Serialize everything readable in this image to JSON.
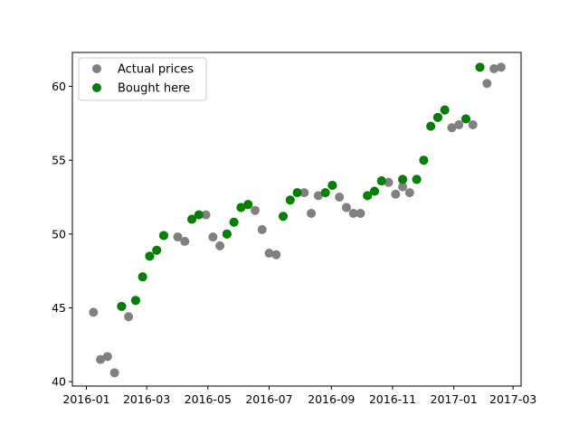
{
  "colors": {
    "actual": "#808080",
    "bought": "#008000",
    "axis": "#000000",
    "legend_border": "#cccccc"
  },
  "chart_data": {
    "type": "scatter",
    "title": "",
    "xlabel": "",
    "ylabel": "",
    "x_is_date": true,
    "xlim": [
      "2015-12-18",
      "2017-03-09"
    ],
    "ylim": [
      39.7,
      62.3
    ],
    "xticks": [
      "2016-01-01",
      "2016-03-01",
      "2016-05-01",
      "2016-07-01",
      "2016-09-01",
      "2016-11-01",
      "2017-01-01",
      "2017-03-01"
    ],
    "xtick_labels": [
      "2016-01",
      "2016-03",
      "2016-05",
      "2016-07",
      "2016-09",
      "2016-11",
      "2017-01",
      "2017-03"
    ],
    "yticks": [
      40,
      45,
      50,
      55,
      60
    ],
    "ytick_labels": [
      "40",
      "45",
      "50",
      "55",
      "60"
    ],
    "legend": {
      "placement": "upper-left"
    },
    "series": [
      {
        "name": "Actual prices",
        "color": "#808080",
        "points": [
          [
            "2016-01-08",
            44.7
          ],
          [
            "2016-01-15",
            41.5
          ],
          [
            "2016-01-22",
            41.7
          ],
          [
            "2016-01-29",
            40.6
          ],
          [
            "2016-02-05",
            45.1
          ],
          [
            "2016-02-12",
            44.4
          ],
          [
            "2016-02-19",
            45.5
          ],
          [
            "2016-02-26",
            47.1
          ],
          [
            "2016-03-04",
            48.5
          ],
          [
            "2016-03-11",
            48.9
          ],
          [
            "2016-03-18",
            49.9
          ],
          [
            "2016-04-01",
            49.8
          ],
          [
            "2016-04-08",
            49.5
          ],
          [
            "2016-04-15",
            51.0
          ],
          [
            "2016-04-22",
            51.3
          ],
          [
            "2016-04-29",
            51.3
          ],
          [
            "2016-05-06",
            49.8
          ],
          [
            "2016-05-13",
            49.2
          ],
          [
            "2016-05-20",
            50.0
          ],
          [
            "2016-05-27",
            50.8
          ],
          [
            "2016-06-03",
            51.8
          ],
          [
            "2016-06-10",
            52.0
          ],
          [
            "2016-06-17",
            51.6
          ],
          [
            "2016-06-24",
            50.3
          ],
          [
            "2016-07-01",
            48.7
          ],
          [
            "2016-07-08",
            48.6
          ],
          [
            "2016-07-15",
            51.2
          ],
          [
            "2016-07-22",
            52.3
          ],
          [
            "2016-07-29",
            52.8
          ],
          [
            "2016-08-05",
            52.8
          ],
          [
            "2016-08-12",
            51.4
          ],
          [
            "2016-08-19",
            52.6
          ],
          [
            "2016-08-26",
            52.8
          ],
          [
            "2016-09-02",
            53.3
          ],
          [
            "2016-09-09",
            52.5
          ],
          [
            "2016-09-16",
            51.8
          ],
          [
            "2016-09-23",
            51.4
          ],
          [
            "2016-09-30",
            51.4
          ],
          [
            "2016-10-07",
            52.6
          ],
          [
            "2016-10-14",
            52.9
          ],
          [
            "2016-10-21",
            53.6
          ],
          [
            "2016-10-28",
            53.5
          ],
          [
            "2016-11-04",
            52.7
          ],
          [
            "2016-11-11",
            53.7
          ],
          [
            "2016-11-11",
            53.2
          ],
          [
            "2016-11-18",
            52.8
          ],
          [
            "2016-11-25",
            53.7
          ],
          [
            "2016-12-02",
            55.0
          ],
          [
            "2016-12-09",
            57.3
          ],
          [
            "2016-12-16",
            57.9
          ],
          [
            "2016-12-23",
            58.4
          ],
          [
            "2016-12-30",
            57.2
          ],
          [
            "2017-01-06",
            57.4
          ],
          [
            "2017-01-13",
            57.8
          ],
          [
            "2017-01-20",
            57.4
          ],
          [
            "2017-01-27",
            61.3
          ],
          [
            "2017-02-03",
            60.2
          ],
          [
            "2017-02-10",
            61.2
          ],
          [
            "2017-02-17",
            61.3
          ]
        ]
      },
      {
        "name": "Bought here",
        "color": "#008000",
        "points": [
          [
            "2016-02-05",
            45.1
          ],
          [
            "2016-02-19",
            45.5
          ],
          [
            "2016-02-26",
            47.1
          ],
          [
            "2016-03-04",
            48.5
          ],
          [
            "2016-03-11",
            48.9
          ],
          [
            "2016-03-18",
            49.9
          ],
          [
            "2016-04-15",
            51.0
          ],
          [
            "2016-04-22",
            51.3
          ],
          [
            "2016-05-20",
            50.0
          ],
          [
            "2016-05-27",
            50.8
          ],
          [
            "2016-06-03",
            51.8
          ],
          [
            "2016-06-10",
            52.0
          ],
          [
            "2016-07-15",
            51.2
          ],
          [
            "2016-07-22",
            52.3
          ],
          [
            "2016-07-29",
            52.8
          ],
          [
            "2016-08-26",
            52.8
          ],
          [
            "2016-09-02",
            53.3
          ],
          [
            "2016-10-07",
            52.6
          ],
          [
            "2016-10-14",
            52.9
          ],
          [
            "2016-10-21",
            53.6
          ],
          [
            "2016-11-11",
            53.7
          ],
          [
            "2016-11-25",
            53.7
          ],
          [
            "2016-12-02",
            55.0
          ],
          [
            "2016-12-09",
            57.3
          ],
          [
            "2016-12-16",
            57.9
          ],
          [
            "2016-12-23",
            58.4
          ],
          [
            "2017-01-13",
            57.8
          ],
          [
            "2017-01-27",
            61.3
          ]
        ]
      }
    ]
  }
}
